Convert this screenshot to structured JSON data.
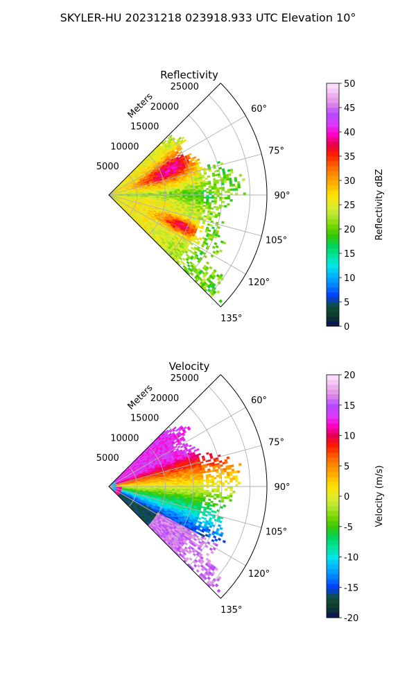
{
  "figure_title": "SKYLER-HU  20231218  023918.933 UTC Elevation 10°",
  "chart_data": [
    {
      "type": "polar_sector",
      "title": "Reflectivity",
      "radial_label": "Meters",
      "r_ticks": [
        "5000",
        "10000",
        "15000",
        "20000",
        "25000"
      ],
      "theta_ticks": [
        "60°",
        "75°",
        "90°",
        "105°",
        "120°",
        "135°"
      ],
      "theta_range_deg": [
        45,
        135
      ],
      "colorbar": {
        "label": "Reflectivity dBZ",
        "range": [
          0,
          50
        ],
        "ticks": [
          "0",
          "5",
          "10",
          "15",
          "20",
          "25",
          "30",
          "35",
          "40",
          "45",
          "50"
        ],
        "colors": [
          "#0a0f5a",
          "#0d3a28",
          "#10503a",
          "#003cff",
          "#0080ff",
          "#00b4ff",
          "#00e5e5",
          "#00e39b",
          "#00d25a",
          "#39c700",
          "#7ad800",
          "#b5e834",
          "#e5ea2a",
          "#ffe100",
          "#ffb400",
          "#ff8c00",
          "#ff5a00",
          "#ff1a00",
          "#e60050",
          "#ff00c8",
          "#d93cff",
          "#b44aff",
          "#e08ae6",
          "#f0bcf0",
          "#fae6fa"
        ]
      },
      "data_summary": "Returns mostly 18–30 dBZ; embedded cells 32–38 dBZ near 70° (≈8–15 km) and 112° (≈12–16 km); sparse 20 dBZ returns beyond 20 km near 85°."
    },
    {
      "type": "polar_sector",
      "title": "Velocity",
      "radial_label": "Meters",
      "r_ticks": [
        "5000",
        "10000",
        "15000",
        "20000",
        "25000"
      ],
      "theta_ticks": [
        "60°",
        "75°",
        "90°",
        "105°",
        "120°",
        "135°"
      ],
      "theta_range_deg": [
        45,
        135
      ],
      "colorbar": {
        "label": "Velocity (m/s)",
        "range": [
          -20,
          20
        ],
        "ticks": [
          "-20",
          "-15",
          "-10",
          "-5",
          "0",
          "5",
          "10",
          "15",
          "20"
        ],
        "colors": [
          "#0a0f5a",
          "#0d3a28",
          "#10503a",
          "#003cff",
          "#0080ff",
          "#00b4ff",
          "#00e5e5",
          "#00e39b",
          "#00d25a",
          "#39c700",
          "#7ad800",
          "#b5e834",
          "#e5ea2a",
          "#ffe100",
          "#ffb400",
          "#ff8c00",
          "#ff5a00",
          "#ff1a00",
          "#e60050",
          "#ff00c8",
          "#d93cff",
          "#b44aff",
          "#e08ae6",
          "#f0bcf0",
          "#fae6fa"
        ]
      },
      "data_summary": "Outbound +8 to +14 m/s north of ~80°, near 0 m/s around 90°, inbound -5 to -17 m/s south of ~100°; aliased magenta near radar at close range."
    }
  ]
}
